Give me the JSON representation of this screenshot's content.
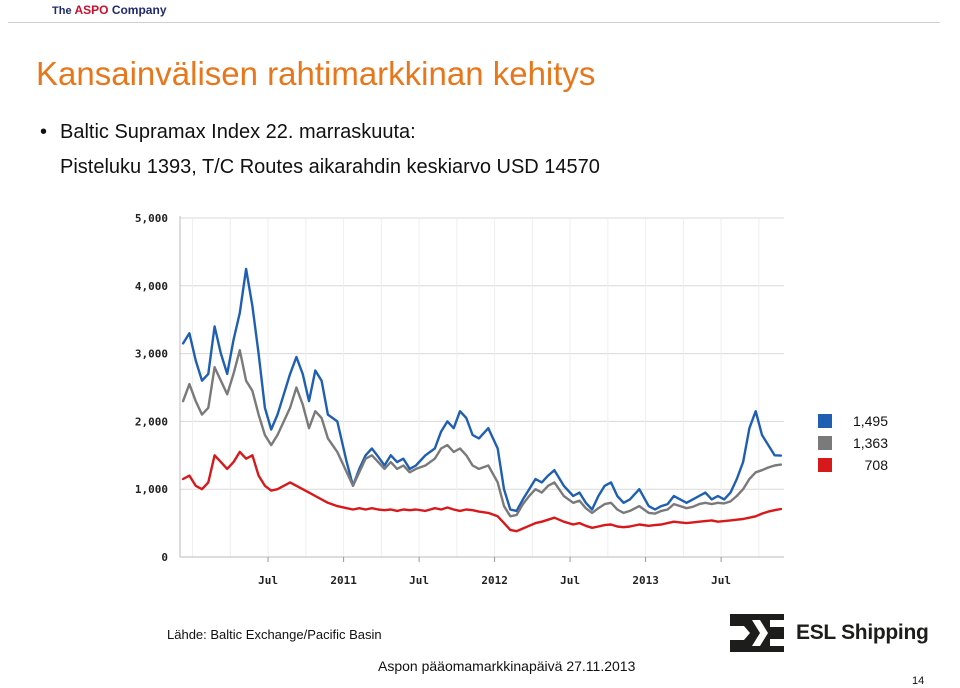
{
  "header": {
    "logo_the": "The",
    "logo_aspo": "ASPO",
    "logo_company": "Company"
  },
  "title": "Kansainvälisen rahtimarkkinan kehitys",
  "bullet": "Baltic Supramax Index 22. marraskuuta:",
  "subline": "Pisteluku 1393, T/C Routes aikarahdin keskiarvo USD 14570",
  "source": "Lähde: Baltic Exchange/Pacific Basin",
  "esl_logo_text": "ESL Shipping",
  "footer": "Aspon pääomamarkkinapäivä 27.11.2013",
  "page_number": "14",
  "colors": {
    "title": "#e8761a",
    "series_blue": "#1f5fb2",
    "series_gray": "#7a7a7a",
    "series_red": "#d7191c",
    "grid": "#d9d9d9"
  },
  "chart_data": {
    "type": "line",
    "title": "",
    "xlabel": "",
    "ylabel": "",
    "x_range": [
      "2009-12",
      "2013-11"
    ],
    "ylim": [
      0,
      5000
    ],
    "y_ticks": [
      0,
      1000,
      2000,
      3000,
      4000,
      5000
    ],
    "y_tick_labels": [
      "0",
      "1,000",
      "2,000",
      "3,000",
      "4,000",
      "5,000"
    ],
    "x_tick_labels": [
      {
        "label": "Jul",
        "x": "2010-07"
      },
      {
        "label": "2011",
        "x": "2011-01"
      },
      {
        "label": "Jul",
        "x": "2011-07"
      },
      {
        "label": "2012",
        "x": "2012-01"
      },
      {
        "label": "Jul",
        "x": "2012-07"
      },
      {
        "label": "2013",
        "x": "2013-01"
      },
      {
        "label": "Jul",
        "x": "2013-07"
      }
    ],
    "grid": true,
    "legend_position": "right",
    "series": [
      {
        "last_value_label": "1,495",
        "color": "#1f5fb2",
        "points": [
          [
            "2009-12",
            3150
          ],
          [
            "2009-12",
            3300
          ],
          [
            "2010-01",
            2900
          ],
          [
            "2010-01",
            2600
          ],
          [
            "2010-02",
            2700
          ],
          [
            "2010-02",
            3400
          ],
          [
            "2010-03",
            3000
          ],
          [
            "2010-03",
            2700
          ],
          [
            "2010-04",
            3200
          ],
          [
            "2010-04",
            3600
          ],
          [
            "2010-05",
            4250
          ],
          [
            "2010-05",
            3700
          ],
          [
            "2010-06",
            3000
          ],
          [
            "2010-06",
            2200
          ],
          [
            "2010-07",
            1880
          ],
          [
            "2010-07",
            2100
          ],
          [
            "2010-08",
            2400
          ],
          [
            "2010-08",
            2700
          ],
          [
            "2010-09",
            2950
          ],
          [
            "2010-09",
            2700
          ],
          [
            "2010-10",
            2300
          ],
          [
            "2010-10",
            2750
          ],
          [
            "2010-11",
            2600
          ],
          [
            "2010-11",
            2100
          ],
          [
            "2010-12",
            2000
          ],
          [
            "2011-01",
            1400
          ],
          [
            "2011-01",
            1050
          ],
          [
            "2011-02",
            1300
          ],
          [
            "2011-02",
            1500
          ],
          [
            "2011-03",
            1600
          ],
          [
            "2011-03",
            1480
          ],
          [
            "2011-04",
            1350
          ],
          [
            "2011-04",
            1500
          ],
          [
            "2011-05",
            1400
          ],
          [
            "2011-05",
            1450
          ],
          [
            "2011-06",
            1300
          ],
          [
            "2011-06",
            1350
          ],
          [
            "2011-07",
            1500
          ],
          [
            "2011-08",
            1600
          ],
          [
            "2011-08",
            1850
          ],
          [
            "2011-09",
            2000
          ],
          [
            "2011-09",
            1900
          ],
          [
            "2011-10",
            2150
          ],
          [
            "2011-10",
            2050
          ],
          [
            "2011-11",
            1800
          ],
          [
            "2011-11",
            1750
          ],
          [
            "2011-12",
            1900
          ],
          [
            "2012-01",
            1600
          ],
          [
            "2012-01",
            1000
          ],
          [
            "2012-02",
            700
          ],
          [
            "2012-02",
            680
          ],
          [
            "2012-03",
            850
          ],
          [
            "2012-03",
            1000
          ],
          [
            "2012-04",
            1150
          ],
          [
            "2012-04",
            1100
          ],
          [
            "2012-05",
            1200
          ],
          [
            "2012-05",
            1280
          ],
          [
            "2012-06",
            1050
          ],
          [
            "2012-07",
            900
          ],
          [
            "2012-07",
            950
          ],
          [
            "2012-08",
            800
          ],
          [
            "2012-08",
            700
          ],
          [
            "2012-09",
            900
          ],
          [
            "2012-09",
            1050
          ],
          [
            "2012-10",
            1100
          ],
          [
            "2012-10",
            900
          ],
          [
            "2012-11",
            800
          ],
          [
            "2012-11",
            850
          ],
          [
            "2012-12",
            1000
          ],
          [
            "2013-01",
            750
          ],
          [
            "2013-01",
            700
          ],
          [
            "2013-02",
            750
          ],
          [
            "2013-02",
            780
          ],
          [
            "2013-03",
            900
          ],
          [
            "2013-03",
            850
          ],
          [
            "2013-04",
            800
          ],
          [
            "2013-04",
            850
          ],
          [
            "2013-05",
            900
          ],
          [
            "2013-05",
            950
          ],
          [
            "2013-06",
            850
          ],
          [
            "2013-06",
            900
          ],
          [
            "2013-07",
            850
          ],
          [
            "2013-07",
            950
          ],
          [
            "2013-08",
            1150
          ],
          [
            "2013-08",
            1400
          ],
          [
            "2013-09",
            1900
          ],
          [
            "2013-09",
            2150
          ],
          [
            "2013-10",
            1800
          ],
          [
            "2013-10",
            1650
          ],
          [
            "2013-11",
            1500
          ],
          [
            "2013-11",
            1495
          ]
        ]
      },
      {
        "last_value_label": "1,363",
        "color": "#7a7a7a",
        "points": [
          [
            "2009-12",
            2300
          ],
          [
            "2009-12",
            2550
          ],
          [
            "2010-01",
            2300
          ],
          [
            "2010-01",
            2100
          ],
          [
            "2010-02",
            2200
          ],
          [
            "2010-02",
            2800
          ],
          [
            "2010-03",
            2600
          ],
          [
            "2010-03",
            2400
          ],
          [
            "2010-04",
            2700
          ],
          [
            "2010-04",
            3050
          ],
          [
            "2010-05",
            2600
          ],
          [
            "2010-05",
            2450
          ],
          [
            "2010-06",
            2100
          ],
          [
            "2010-06",
            1800
          ],
          [
            "2010-07",
            1650
          ],
          [
            "2010-07",
            1800
          ],
          [
            "2010-08",
            2000
          ],
          [
            "2010-08",
            2200
          ],
          [
            "2010-09",
            2500
          ],
          [
            "2010-09",
            2250
          ],
          [
            "2010-10",
            1900
          ],
          [
            "2010-10",
            2150
          ],
          [
            "2010-11",
            2050
          ],
          [
            "2010-11",
            1750
          ],
          [
            "2010-12",
            1550
          ],
          [
            "2011-01",
            1250
          ],
          [
            "2011-01",
            1050
          ],
          [
            "2011-02",
            1250
          ],
          [
            "2011-02",
            1450
          ],
          [
            "2011-03",
            1500
          ],
          [
            "2011-03",
            1400
          ],
          [
            "2011-04",
            1300
          ],
          [
            "2011-04",
            1400
          ],
          [
            "2011-05",
            1300
          ],
          [
            "2011-05",
            1350
          ],
          [
            "2011-06",
            1250
          ],
          [
            "2011-06",
            1300
          ],
          [
            "2011-07",
            1350
          ],
          [
            "2011-08",
            1450
          ],
          [
            "2011-08",
            1600
          ],
          [
            "2011-09",
            1650
          ],
          [
            "2011-09",
            1550
          ],
          [
            "2011-10",
            1600
          ],
          [
            "2011-10",
            1500
          ],
          [
            "2011-11",
            1350
          ],
          [
            "2011-11",
            1300
          ],
          [
            "2011-12",
            1350
          ],
          [
            "2012-01",
            1100
          ],
          [
            "2012-01",
            750
          ],
          [
            "2012-02",
            600
          ],
          [
            "2012-02",
            620
          ],
          [
            "2012-03",
            780
          ],
          [
            "2012-03",
            900
          ],
          [
            "2012-04",
            1000
          ],
          [
            "2012-04",
            950
          ],
          [
            "2012-05",
            1050
          ],
          [
            "2012-05",
            1100
          ],
          [
            "2012-06",
            900
          ],
          [
            "2012-07",
            800
          ],
          [
            "2012-07",
            830
          ],
          [
            "2012-08",
            720
          ],
          [
            "2012-08",
            650
          ],
          [
            "2012-09",
            720
          ],
          [
            "2012-09",
            780
          ],
          [
            "2012-10",
            800
          ],
          [
            "2012-10",
            700
          ],
          [
            "2012-11",
            650
          ],
          [
            "2012-11",
            680
          ],
          [
            "2012-12",
            750
          ],
          [
            "2013-01",
            650
          ],
          [
            "2013-01",
            640
          ],
          [
            "2013-02",
            680
          ],
          [
            "2013-02",
            700
          ],
          [
            "2013-03",
            780
          ],
          [
            "2013-03",
            750
          ],
          [
            "2013-04",
            720
          ],
          [
            "2013-04",
            740
          ],
          [
            "2013-05",
            780
          ],
          [
            "2013-05",
            800
          ],
          [
            "2013-06",
            780
          ],
          [
            "2013-06",
            800
          ],
          [
            "2013-07",
            790
          ],
          [
            "2013-07",
            820
          ],
          [
            "2013-08",
            900
          ],
          [
            "2013-08",
            1000
          ],
          [
            "2013-09",
            1150
          ],
          [
            "2013-09",
            1250
          ],
          [
            "2013-10",
            1280
          ],
          [
            "2013-10",
            1320
          ],
          [
            "2013-11",
            1350
          ],
          [
            "2013-11",
            1363
          ]
        ]
      },
      {
        "last_value_label": "708",
        "color": "#d7191c",
        "points": [
          [
            "2009-12",
            1150
          ],
          [
            "2009-12",
            1200
          ],
          [
            "2010-01",
            1050
          ],
          [
            "2010-01",
            1000
          ],
          [
            "2010-02",
            1100
          ],
          [
            "2010-02",
            1500
          ],
          [
            "2010-03",
            1400
          ],
          [
            "2010-03",
            1300
          ],
          [
            "2010-04",
            1400
          ],
          [
            "2010-04",
            1550
          ],
          [
            "2010-05",
            1450
          ],
          [
            "2010-05",
            1500
          ],
          [
            "2010-06",
            1200
          ],
          [
            "2010-06",
            1050
          ],
          [
            "2010-07",
            980
          ],
          [
            "2010-07",
            1000
          ],
          [
            "2010-08",
            1050
          ],
          [
            "2010-08",
            1100
          ],
          [
            "2010-09",
            1050
          ],
          [
            "2010-09",
            1000
          ],
          [
            "2010-10",
            950
          ],
          [
            "2010-10",
            900
          ],
          [
            "2010-11",
            850
          ],
          [
            "2010-11",
            800
          ],
          [
            "2010-12",
            750
          ],
          [
            "2011-01",
            720
          ],
          [
            "2011-01",
            700
          ],
          [
            "2011-02",
            720
          ],
          [
            "2011-02",
            700
          ],
          [
            "2011-03",
            720
          ],
          [
            "2011-03",
            700
          ],
          [
            "2011-04",
            690
          ],
          [
            "2011-04",
            700
          ],
          [
            "2011-05",
            680
          ],
          [
            "2011-05",
            700
          ],
          [
            "2011-06",
            690
          ],
          [
            "2011-06",
            700
          ],
          [
            "2011-07",
            680
          ],
          [
            "2011-08",
            720
          ],
          [
            "2011-08",
            700
          ],
          [
            "2011-09",
            730
          ],
          [
            "2011-09",
            700
          ],
          [
            "2011-10",
            680
          ],
          [
            "2011-10",
            700
          ],
          [
            "2011-11",
            690
          ],
          [
            "2011-11",
            670
          ],
          [
            "2011-12",
            650
          ],
          [
            "2012-01",
            600
          ],
          [
            "2012-01",
            500
          ],
          [
            "2012-02",
            400
          ],
          [
            "2012-02",
            380
          ],
          [
            "2012-03",
            420
          ],
          [
            "2012-03",
            460
          ],
          [
            "2012-04",
            500
          ],
          [
            "2012-04",
            520
          ],
          [
            "2012-05",
            550
          ],
          [
            "2012-05",
            580
          ],
          [
            "2012-06",
            520
          ],
          [
            "2012-07",
            480
          ],
          [
            "2012-07",
            500
          ],
          [
            "2012-08",
            460
          ],
          [
            "2012-08",
            430
          ],
          [
            "2012-09",
            450
          ],
          [
            "2012-09",
            470
          ],
          [
            "2012-10",
            480
          ],
          [
            "2012-10",
            450
          ],
          [
            "2012-11",
            440
          ],
          [
            "2012-11",
            450
          ],
          [
            "2012-12",
            480
          ],
          [
            "2013-01",
            460
          ],
          [
            "2013-01",
            470
          ],
          [
            "2013-02",
            480
          ],
          [
            "2013-02",
            500
          ],
          [
            "2013-03",
            520
          ],
          [
            "2013-03",
            510
          ],
          [
            "2013-04",
            500
          ],
          [
            "2013-04",
            510
          ],
          [
            "2013-05",
            520
          ],
          [
            "2013-05",
            530
          ],
          [
            "2013-06",
            540
          ],
          [
            "2013-06",
            520
          ],
          [
            "2013-07",
            530
          ],
          [
            "2013-07",
            540
          ],
          [
            "2013-08",
            550
          ],
          [
            "2013-08",
            560
          ],
          [
            "2013-09",
            580
          ],
          [
            "2013-09",
            600
          ],
          [
            "2013-10",
            640
          ],
          [
            "2013-10",
            670
          ],
          [
            "2013-11",
            690
          ],
          [
            "2013-11",
            708
          ]
        ]
      }
    ]
  }
}
